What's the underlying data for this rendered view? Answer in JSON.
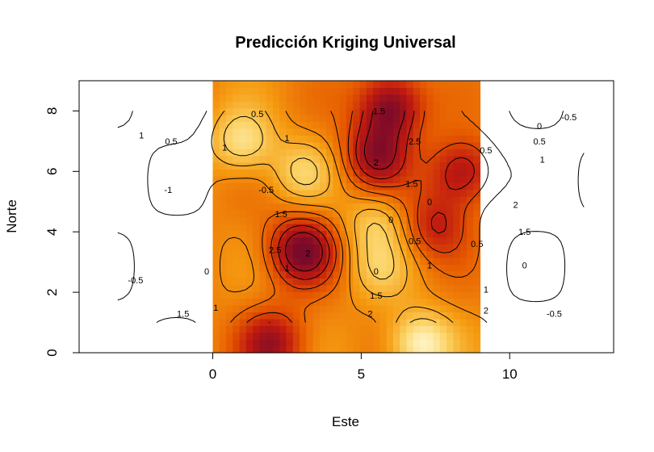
{
  "chart_data": {
    "type": "heatmap",
    "title": "Predicción Kriging Universal",
    "xlabel": "Este",
    "ylabel": "Norte",
    "xlim": [
      -4.5,
      13.5
    ],
    "ylim": [
      0,
      9
    ],
    "xticks": [
      0,
      5,
      10
    ],
    "yticks": [
      0,
      2,
      4,
      6,
      8
    ],
    "grid": false,
    "raster_extent": {
      "x": [
        0,
        9
      ],
      "y": [
        0,
        9
      ]
    },
    "contour_extent": {
      "x": [
        -3.2,
        12.5
      ],
      "y": [
        1,
        8
      ]
    },
    "color_scale": [
      "#7a0a2a",
      "#c01a10",
      "#e65a00",
      "#f59a10",
      "#fbd060",
      "#fff6c8"
    ],
    "hotspots": [
      {
        "x": 3.0,
        "y": 3.4,
        "value": 3.0
      },
      {
        "x": 6.0,
        "y": 8.2,
        "value": 3.0
      },
      {
        "x": 5.5,
        "y": 6.5,
        "value": 2.5
      },
      {
        "x": 8.4,
        "y": 6.0,
        "value": 2.5
      },
      {
        "x": 2.0,
        "y": 0.3,
        "value": 2.5
      },
      {
        "x": 7.5,
        "y": 4.2,
        "value": 2.0
      }
    ],
    "coldspots": [
      {
        "x": 7.0,
        "y": 0.3,
        "value": -1.5
      },
      {
        "x": 1.0,
        "y": 7.0,
        "value": -1.0
      },
      {
        "x": 3.0,
        "y": 6.0,
        "value": -0.5
      },
      {
        "x": 5.5,
        "y": 4.3,
        "value": -0.5
      },
      {
        "x": 5.6,
        "y": 2.8,
        "value": -0.3
      }
    ],
    "contour_labels": [
      {
        "text": "0.5",
        "x": 1.5,
        "y": 7.9
      },
      {
        "text": "1.5",
        "x": 5.6,
        "y": 8.0
      },
      {
        "text": "2.5",
        "x": 6.8,
        "y": 7.0
      },
      {
        "text": "2",
        "x": 5.5,
        "y": 6.3
      },
      {
        "text": "1",
        "x": 0.4,
        "y": 6.8
      },
      {
        "text": "1",
        "x": 2.5,
        "y": 7.1
      },
      {
        "text": "-0.5",
        "x": 1.8,
        "y": 5.4
      },
      {
        "text": "1.5",
        "x": 6.7,
        "y": 5.6
      },
      {
        "text": "0",
        "x": 7.3,
        "y": 5.0
      },
      {
        "text": "0",
        "x": 6.0,
        "y": 4.4
      },
      {
        "text": "1.5",
        "x": 2.3,
        "y": 4.6
      },
      {
        "text": "2.5",
        "x": 2.1,
        "y": 3.4
      },
      {
        "text": "2",
        "x": 3.2,
        "y": 3.3
      },
      {
        "text": "1",
        "x": 2.5,
        "y": 2.8
      },
      {
        "text": "0.5",
        "x": 6.8,
        "y": 3.7
      },
      {
        "text": "0.5",
        "x": 8.9,
        "y": 3.6
      },
      {
        "text": "0",
        "x": 5.5,
        "y": 2.7
      },
      {
        "text": "1",
        "x": 7.3,
        "y": 2.9
      },
      {
        "text": "1.5",
        "x": 5.5,
        "y": 1.9
      },
      {
        "text": "2",
        "x": 5.3,
        "y": 1.3
      },
      {
        "text": "1",
        "x": 0.1,
        "y": 1.5
      },
      {
        "text": "1.5",
        "x": -1.0,
        "y": 1.3
      },
      {
        "text": "0",
        "x": -0.2,
        "y": 2.7
      },
      {
        "text": "-0.5",
        "x": -2.6,
        "y": 2.4
      },
      {
        "text": "1",
        "x": -2.4,
        "y": 7.2
      },
      {
        "text": "0.5",
        "x": -1.4,
        "y": 7.0
      },
      {
        "text": "-1",
        "x": -1.5,
        "y": 5.4
      },
      {
        "text": "-0.5",
        "x": 12.0,
        "y": 7.8
      },
      {
        "text": "0",
        "x": 11.0,
        "y": 7.5
      },
      {
        "text": "0.5",
        "x": 11.0,
        "y": 7.0
      },
      {
        "text": "0.5",
        "x": 9.2,
        "y": 6.7
      },
      {
        "text": "1",
        "x": 11.1,
        "y": 6.4
      },
      {
        "text": "2",
        "x": 10.2,
        "y": 4.9
      },
      {
        "text": "1.5",
        "x": 10.5,
        "y": 4.0
      },
      {
        "text": "0",
        "x": 10.5,
        "y": 2.9
      },
      {
        "text": "1",
        "x": 9.2,
        "y": 2.1
      },
      {
        "text": "2",
        "x": 9.2,
        "y": 1.4
      },
      {
        "text": "-0.5",
        "x": 11.5,
        "y": 1.3
      }
    ]
  }
}
